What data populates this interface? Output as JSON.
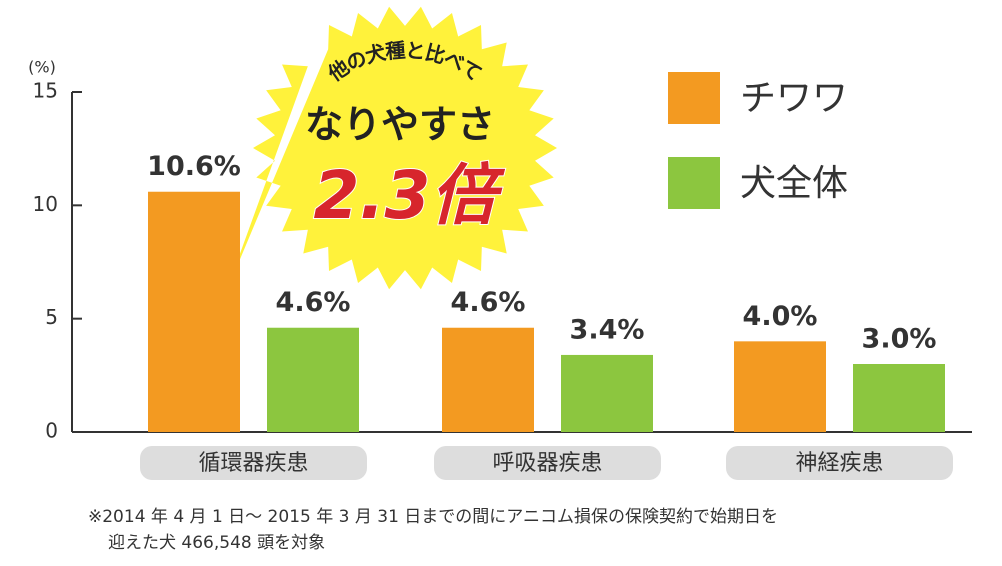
{
  "chart_data": {
    "type": "bar",
    "y_label": "(%)",
    "categories": [
      "循環器疾患",
      "呼吸器疾患",
      "神経疾患"
    ],
    "series": [
      {
        "name": "チワワ",
        "color": "#f39a21",
        "values": [
          10.6,
          4.6,
          4.0
        ],
        "value_labels": [
          "10.6%",
          "4.6%",
          "4.0%"
        ]
      },
      {
        "name": "犬全体",
        "color": "#8cc63f",
        "values": [
          4.6,
          3.4,
          3.0
        ],
        "value_labels": [
          "4.6%",
          "3.4%",
          "3.0%"
        ]
      }
    ],
    "ylim": [
      0,
      15
    ],
    "yticks": [
      0,
      5,
      10,
      15
    ],
    "annotation": {
      "lead": "他の犬種と比べて",
      "main": "なりやすさ",
      "highlight": "2.3倍"
    },
    "footnote": [
      "※2014 年 4 月 1 日～ 2015 年 3 月 31 日までの間にアニコム損保の保険契約で始期日を",
      "迎えた犬 466,548 頭を対象"
    ]
  }
}
